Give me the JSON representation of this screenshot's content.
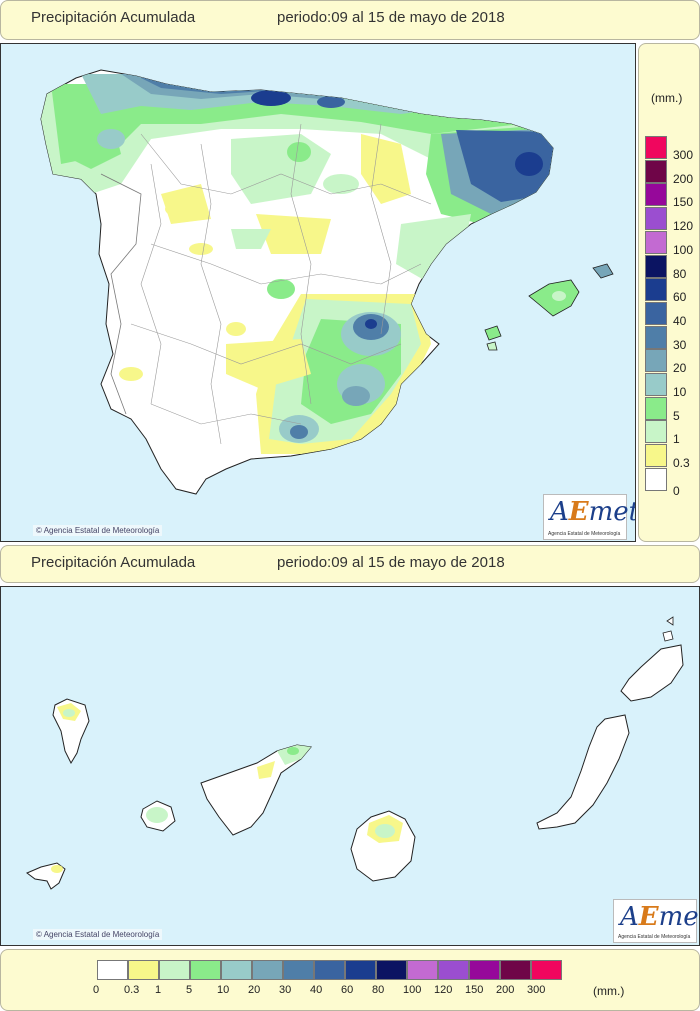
{
  "top": {
    "title": "Precipitación Acumulada",
    "period": "periodo:09 al 15 de mayo de 2018",
    "copyright": "Agencia Estatal de Meteorología",
    "unit": "(mm.)"
  },
  "bottom": {
    "title": "Precipitación Acumulada",
    "period": "periodo:09 al 15 de mayo de 2018",
    "copyright": "Agencia Estatal de Meteorología",
    "unit": "(mm.)"
  },
  "logo": {
    "text_a": "A",
    "text_e": "E",
    "text_met": "met",
    "subtitle": "Agencia Estatal de Meteorología"
  },
  "legend": {
    "vertical": [
      {
        "label": "300",
        "color": "#f0065e"
      },
      {
        "label": "200",
        "color": "#6f0548"
      },
      {
        "label": "150",
        "color": "#96089a"
      },
      {
        "label": "120",
        "color": "#9b4ed0"
      },
      {
        "label": "100",
        "color": "#c36ad2"
      },
      {
        "label": "80",
        "color": "#0b1462"
      },
      {
        "label": "60",
        "color": "#1b3d8f"
      },
      {
        "label": "40",
        "color": "#3a64a0"
      },
      {
        "label": "30",
        "color": "#4f7ea8"
      },
      {
        "label": "20",
        "color": "#77a6b8"
      },
      {
        "label": "10",
        "color": "#98cbc9"
      },
      {
        "label": "5",
        "color": "#8aeb8a"
      },
      {
        "label": "1",
        "color": "#c8f5c8"
      },
      {
        "label": "0.3",
        "color": "#f7f78a"
      },
      {
        "label": "0",
        "color": "#ffffff"
      }
    ],
    "horizontal": [
      {
        "label": "0",
        "color": "#ffffff"
      },
      {
        "label": "0.3",
        "color": "#f7f78a"
      },
      {
        "label": "1",
        "color": "#c8f5c8"
      },
      {
        "label": "5",
        "color": "#8aeb8a"
      },
      {
        "label": "10",
        "color": "#98cbc9"
      },
      {
        "label": "20",
        "color": "#77a6b8"
      },
      {
        "label": "30",
        "color": "#4f7ea8"
      },
      {
        "label": "40",
        "color": "#3a64a0"
      },
      {
        "label": "60",
        "color": "#1b3d8f"
      },
      {
        "label": "80",
        "color": "#0b1462"
      },
      {
        "label": "100",
        "color": "#c36ad2"
      },
      {
        "label": "120",
        "color": "#9b4ed0"
      },
      {
        "label": "150",
        "color": "#96089a"
      },
      {
        "label": "200",
        "color": "#6f0548"
      },
      {
        "label": "300",
        "color": "#f0065e"
      }
    ]
  },
  "colors": {
    "sea": "#d9f2fb",
    "land": "#ffffff",
    "panel": "#fdfbd0"
  }
}
